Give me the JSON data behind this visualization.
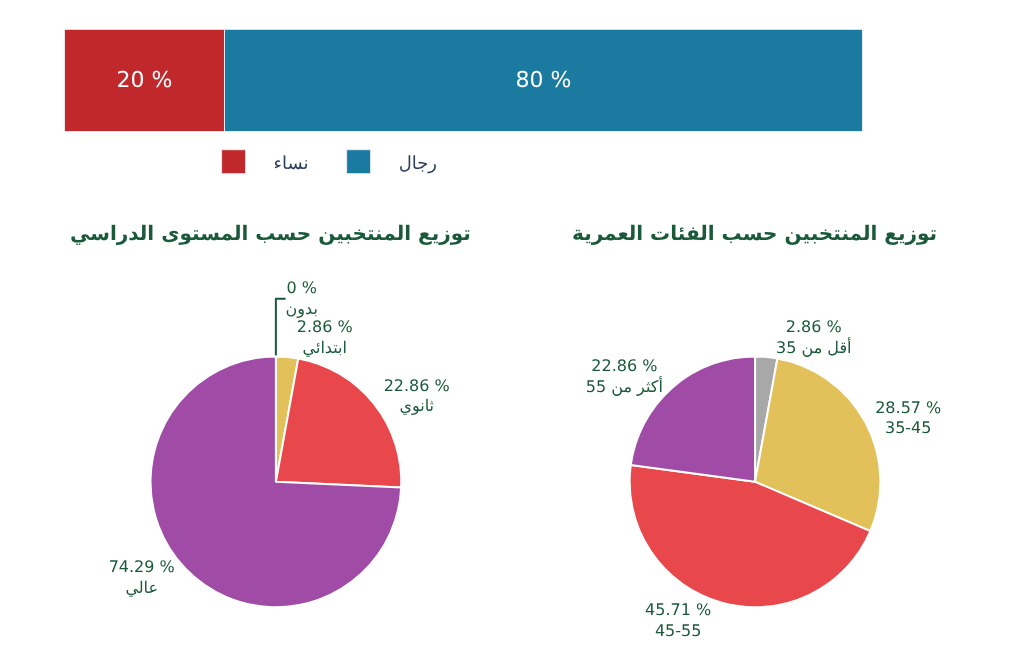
{
  "chart_data": [
    {
      "type": "bar",
      "orientation": "horizontal",
      "stacked": true,
      "categories": [
        null
      ],
      "xlim": [
        0,
        100
      ],
      "tick_labels": false,
      "legend": "bottom",
      "series": [
        {
          "name": "نساء",
          "color": "#c0282c",
          "values": [
            20
          ],
          "value_labels": [
            "20 %"
          ]
        },
        {
          "name": "رجال",
          "color": "#1b7aa0",
          "values": [
            80
          ],
          "value_labels": [
            "80 %"
          ]
        }
      ]
    },
    {
      "type": "pie",
      "title": "توزيع المنتخبين حسب المستوى الدراسي",
      "categories": [
        "بدون",
        "ابتدائي",
        "ثانوي",
        "عالي"
      ],
      "values": [
        0,
        2.86,
        22.86,
        74.29
      ],
      "value_labels": [
        "0 %",
        "2.86 %",
        "22.86 %",
        "74.29 %"
      ],
      "colors": [
        "#a8a8a8",
        "#e2c15a",
        "#e8484c",
        "#a04ca6"
      ]
    },
    {
      "type": "pie",
      "title": "توزيع المنتخبين حسب الفئات العمرية",
      "categories": [
        "أقل من 35",
        "35-45",
        "45-55",
        "أكثر من 55"
      ],
      "values": [
        2.86,
        28.57,
        45.71,
        22.86
      ],
      "value_labels": [
        "2.86 %",
        "28.57 %",
        "45.71 %",
        "22.86 %"
      ],
      "colors": [
        "#a8a8a8",
        "#e2c15a",
        "#e8484c",
        "#a04ca6"
      ]
    }
  ]
}
